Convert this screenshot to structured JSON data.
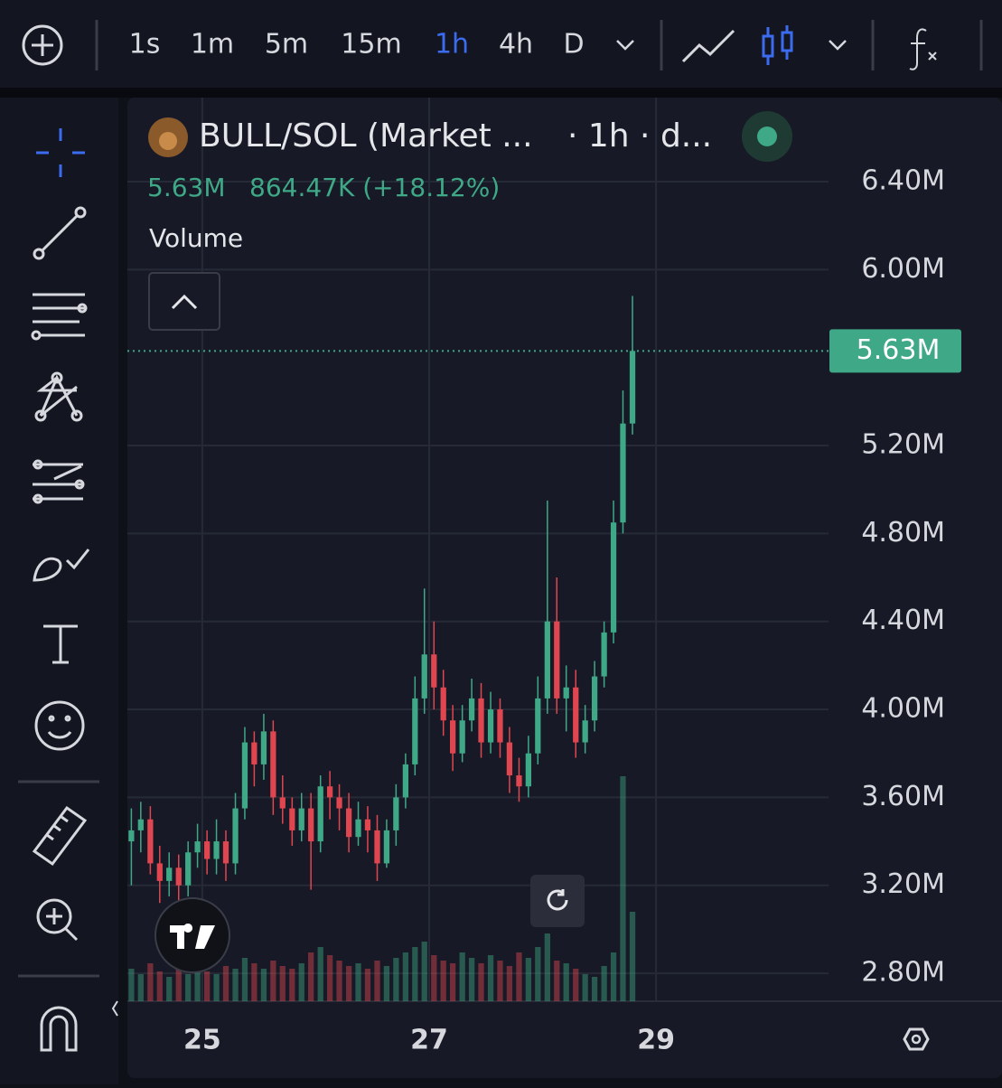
{
  "toolbar": {
    "intervals": [
      "1s",
      "1m",
      "5m",
      "15m",
      "1h",
      "4h",
      "D"
    ],
    "active_index": 4
  },
  "legend": {
    "symbol": "BULL/SOL (Market ...",
    "interval": "· 1h · d...",
    "close": "5.63M",
    "change": "864.47K (+18.12%)",
    "indicator": "Volume"
  },
  "chart_data": {
    "type": "candlestick",
    "x": [
      24.375,
      24.458,
      24.542,
      24.625,
      24.708,
      24.792,
      24.875,
      24.958,
      25.042,
      25.125,
      25.208,
      25.292,
      25.375,
      25.458,
      25.542,
      25.625,
      25.708,
      25.792,
      25.875,
      25.958,
      26.042,
      26.125,
      26.208,
      26.292,
      26.375,
      26.458,
      26.542,
      26.625,
      26.708,
      26.792,
      26.875,
      26.958,
      27.042,
      27.125,
      27.208,
      27.292,
      27.375,
      27.458,
      27.542,
      27.625,
      27.708,
      27.792,
      27.875,
      27.958,
      28.042,
      28.125,
      28.208,
      28.292,
      28.375,
      28.458,
      28.542,
      28.625,
      28.708,
      28.792
    ],
    "open": [
      3.4,
      3.45,
      3.5,
      3.3,
      3.22,
      3.28,
      3.2,
      3.35,
      3.4,
      3.32,
      3.4,
      3.3,
      3.55,
      3.85,
      3.75,
      3.9,
      3.6,
      3.55,
      3.45,
      3.55,
      3.4,
      3.65,
      3.6,
      3.55,
      3.42,
      3.5,
      3.45,
      3.3,
      3.45,
      3.6,
      3.75,
      4.05,
      4.25,
      4.1,
      3.95,
      3.8,
      3.95,
      4.05,
      3.85,
      4.0,
      3.85,
      3.7,
      3.65,
      3.8,
      4.05,
      4.4,
      4.05,
      4.1,
      3.85,
      3.95,
      4.15,
      4.35,
      4.85,
      5.3
    ],
    "high": [
      3.55,
      3.58,
      3.56,
      3.38,
      3.35,
      3.34,
      3.4,
      3.48,
      3.45,
      3.5,
      3.45,
      3.62,
      3.92,
      3.9,
      3.98,
      3.95,
      3.7,
      3.6,
      3.62,
      3.62,
      3.7,
      3.72,
      3.66,
      3.62,
      3.58,
      3.56,
      3.52,
      3.5,
      3.66,
      3.8,
      4.15,
      4.55,
      4.4,
      4.18,
      4.02,
      4.02,
      4.14,
      4.12,
      4.08,
      4.05,
      3.92,
      3.78,
      3.88,
      4.15,
      4.95,
      4.6,
      4.2,
      4.18,
      4.02,
      4.22,
      4.4,
      4.95,
      5.45,
      5.88
    ],
    "low": [
      3.2,
      3.35,
      3.25,
      3.12,
      3.15,
      3.1,
      3.15,
      3.28,
      3.25,
      3.25,
      3.22,
      3.25,
      3.5,
      3.65,
      3.68,
      3.52,
      3.48,
      3.38,
      3.4,
      3.18,
      3.35,
      3.5,
      3.45,
      3.35,
      3.38,
      3.35,
      3.22,
      3.28,
      3.38,
      3.55,
      3.7,
      3.98,
      4.0,
      3.88,
      3.72,
      3.76,
      3.9,
      3.78,
      3.8,
      3.78,
      3.62,
      3.58,
      3.6,
      3.75,
      3.98,
      3.98,
      3.9,
      3.78,
      3.8,
      3.9,
      4.1,
      4.3,
      4.8,
      5.25
    ],
    "close": [
      3.45,
      3.5,
      3.3,
      3.22,
      3.28,
      3.2,
      3.35,
      3.4,
      3.32,
      3.4,
      3.3,
      3.55,
      3.85,
      3.75,
      3.9,
      3.6,
      3.55,
      3.45,
      3.55,
      3.4,
      3.65,
      3.6,
      3.55,
      3.42,
      3.5,
      3.45,
      3.3,
      3.45,
      3.6,
      3.75,
      4.05,
      4.25,
      4.1,
      3.95,
      3.8,
      3.95,
      4.05,
      3.85,
      4.0,
      3.85,
      3.7,
      3.65,
      3.8,
      4.05,
      4.4,
      4.05,
      4.1,
      3.85,
      3.95,
      4.15,
      4.35,
      4.85,
      5.3,
      5.63
    ],
    "volume": [
      12,
      10,
      14,
      11,
      9,
      13,
      10,
      12,
      11,
      10,
      13,
      12,
      16,
      14,
      12,
      15,
      13,
      12,
      14,
      18,
      20,
      17,
      15,
      13,
      14,
      12,
      15,
      13,
      16,
      18,
      20,
      22,
      17,
      15,
      14,
      18,
      16,
      14,
      17,
      15,
      13,
      18,
      16,
      20,
      25,
      15,
      14,
      12,
      10,
      9,
      13,
      18,
      83,
      33
    ],
    "volume_ylim": [
      0,
      100
    ],
    "up_color": "#3fa886",
    "down_color": "#e0464f",
    "xlim": [
      24.34,
      30.52
    ],
    "xticks": [
      25,
      27,
      29
    ],
    "ylim": [
      2.673,
      6.782
    ],
    "yticks": [
      {
        "value": 2.8,
        "label": "2.80M"
      },
      {
        "value": 3.2,
        "label": "3.20M"
      },
      {
        "value": 3.6,
        "label": "3.60M"
      },
      {
        "value": 4.0,
        "label": "4.00M"
      },
      {
        "value": 4.4,
        "label": "4.40M"
      },
      {
        "value": 4.8,
        "label": "4.80M"
      },
      {
        "value": 5.2,
        "label": "5.20M"
      },
      {
        "value": 6.0,
        "label": "6.00M"
      },
      {
        "value": 6.4,
        "label": "6.40M"
      }
    ],
    "price_label": {
      "value": 5.63,
      "label": "5.63M"
    },
    "grid": true
  }
}
